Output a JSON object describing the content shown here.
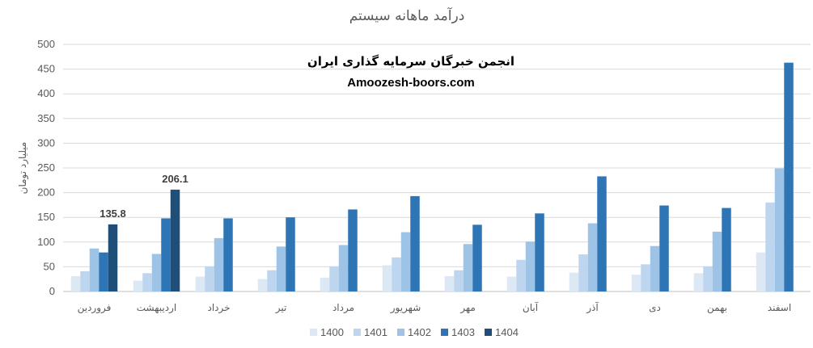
{
  "chart_data": {
    "type": "bar",
    "title": "درآمد ماهانه سیستم",
    "ylabel": "میلیارد تومان",
    "xlabel": "",
    "ylim": [
      0,
      500
    ],
    "yticks": [
      0,
      50,
      100,
      150,
      200,
      250,
      300,
      350,
      400,
      450,
      500
    ],
    "grid": true,
    "legend_position": "bottom",
    "categories": [
      "فروردین",
      "اردیبهشت",
      "خرداد",
      "تیر",
      "مرداد",
      "شهریور",
      "مهر",
      "آبان",
      "آذر",
      "دی",
      "بهمن",
      "اسفند"
    ],
    "series": [
      {
        "name": "1400",
        "color": "#dde8f5",
        "values": [
          31,
          22,
          30,
          25,
          28,
          53,
          31,
          30,
          38,
          34,
          37,
          79
        ]
      },
      {
        "name": "1401",
        "color": "#bdd5ee",
        "values": [
          41,
          37,
          51,
          43,
          51,
          69,
          43,
          64,
          75,
          55,
          51,
          180
        ]
      },
      {
        "name": "1402",
        "color": "#9dc3e6",
        "values": [
          87,
          76,
          108,
          91,
          94,
          120,
          96,
          101,
          138,
          92,
          121,
          249
        ]
      },
      {
        "name": "1403",
        "color": "#2e75b6",
        "values": [
          79,
          148,
          148,
          150,
          166,
          193,
          135,
          158,
          233,
          174,
          169,
          463
        ]
      },
      {
        "name": "1404",
        "color": "#1f4e79",
        "values": [
          135.8,
          206.1,
          null,
          null,
          null,
          null,
          null,
          null,
          null,
          null,
          null,
          null
        ]
      }
    ],
    "data_labels": [
      {
        "series": "1404",
        "category_index": 0,
        "text": "135.8"
      },
      {
        "series": "1404",
        "category_index": 1,
        "text": "206.1"
      }
    ]
  },
  "watermark": {
    "line1": "انجمن خبرگان سرمایه گذاری ایران",
    "line2": "Amoozesh-boors.com"
  }
}
